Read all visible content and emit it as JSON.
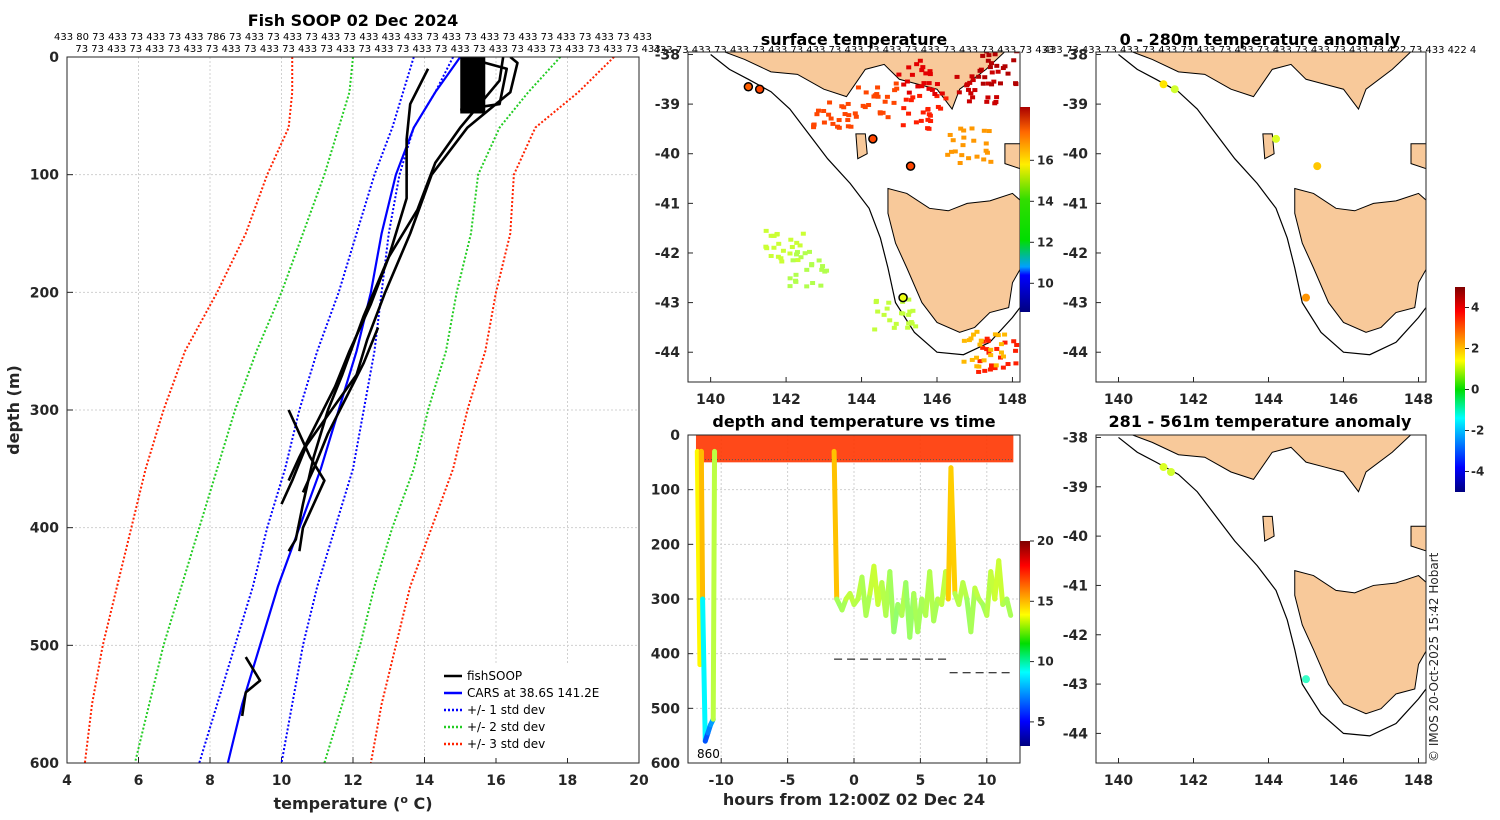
{
  "colors": {
    "fish": "#000000",
    "cars": "#0000ff",
    "std1": "#0000ff",
    "std2": "#22cc22",
    "std3": "#ff2200",
    "land": "#f8c99a",
    "coast": "#000000"
  },
  "chart_data": [
    {
      "id": "profile",
      "type": "line",
      "title": "Fish SOOP 02 Dec 2024",
      "xlabel": "temperature (",
      "xlabel_sup": "o",
      "xlabel_end": " C)",
      "ylabel": "depth (m)",
      "xlim": [
        4,
        20
      ],
      "ylim": [
        0,
        600
      ],
      "xticks": [
        "4",
        "6",
        "8",
        "10",
        "12",
        "14",
        "16",
        "18",
        "20"
      ],
      "yticks": [
        "0",
        "100",
        "200",
        "300",
        "400",
        "500",
        "600"
      ],
      "top_row1": "433 80 73 433 73 433 73 433 786 73 433 73 433 73 433 73 433 433 433 73 433 73 433 73 433 73 433 73 433 73 433",
      "top_row2": "73 73 433 73 433 73 433 73 433 73 433 73 433 73 433 73 433 73 433 73 433 73 433 73 433 73 433 73 433 73 433",
      "legend": [
        {
          "label": "fishSOOP",
          "style": "solid",
          "color": "#000000"
        },
        {
          "label": "CARS at 38.6S 141.2E",
          "style": "solid",
          "color": "#0000ff"
        },
        {
          "label": "+/- 1 std dev",
          "style": "dotted",
          "color": "#0000ff"
        },
        {
          "label": "+/- 2 std dev",
          "style": "dotted",
          "color": "#22cc22"
        },
        {
          "label": "+/- 3 std dev",
          "style": "dotted",
          "color": "#ff2200"
        }
      ],
      "series": [
        {
          "name": "CARS mean",
          "depth": [
            0,
            30,
            60,
            100,
            150,
            200,
            250,
            300,
            350,
            400,
            450,
            500,
            550,
            600
          ],
          "temp": [
            15.0,
            14.3,
            13.7,
            13.2,
            12.8,
            12.5,
            12.1,
            11.6,
            11.1,
            10.5,
            9.9,
            9.4,
            8.9,
            8.5
          ]
        },
        {
          "name": "-1 std",
          "depth": [
            0,
            30,
            60,
            100,
            150,
            200,
            250,
            300,
            350,
            400,
            450,
            500,
            550,
            600
          ],
          "temp": [
            13.7,
            13.4,
            13.1,
            12.6,
            12.1,
            11.6,
            11.0,
            10.5,
            10.1,
            9.6,
            9.2,
            8.7,
            8.2,
            7.7
          ]
        },
        {
          "name": "+1 std",
          "depth": [
            0,
            30,
            60,
            100,
            150,
            200,
            250,
            300,
            350,
            400,
            450,
            500,
            550,
            600
          ],
          "temp": [
            14.8,
            14.3,
            13.7,
            13.3,
            13.0,
            12.8,
            12.6,
            12.3,
            12.0,
            11.5,
            11.0,
            10.6,
            10.3,
            10.0
          ]
        },
        {
          "name": "-2 std",
          "depth": [
            0,
            30,
            60,
            100,
            150,
            200,
            250,
            300,
            350,
            400,
            450,
            500,
            550,
            600
          ],
          "temp": [
            12.0,
            11.9,
            11.6,
            11.2,
            10.6,
            10.0,
            9.3,
            8.7,
            8.2,
            7.7,
            7.2,
            6.7,
            6.3,
            5.9
          ]
        },
        {
          "name": "+2 std",
          "depth": [
            0,
            30,
            60,
            100,
            150,
            200,
            250,
            300,
            350,
            400,
            450,
            500,
            550,
            600
          ],
          "temp": [
            17.8,
            16.9,
            16.1,
            15.5,
            15.3,
            14.9,
            14.6,
            14.1,
            13.7,
            13.1,
            12.6,
            12.2,
            11.7,
            11.2
          ]
        },
        {
          "name": "-3 std",
          "depth": [
            0,
            30,
            60,
            100,
            150,
            200,
            250,
            300,
            350,
            400,
            450,
            500,
            550,
            600
          ],
          "temp": [
            10.3,
            10.3,
            10.2,
            9.6,
            9.0,
            8.2,
            7.3,
            6.7,
            6.2,
            5.8,
            5.4,
            5.0,
            4.7,
            4.5
          ]
        },
        {
          "name": "+3 std",
          "depth": [
            0,
            30,
            60,
            100,
            150,
            200,
            250,
            300,
            350,
            400,
            450,
            500,
            550,
            600
          ],
          "temp": [
            19.3,
            18.3,
            17.1,
            16.5,
            16.4,
            16.0,
            15.7,
            15.2,
            14.8,
            14.2,
            13.6,
            13.2,
            12.8,
            12.5
          ]
        }
      ],
      "fish_profiles": [
        {
          "depth": [
            0,
            10,
            40,
            45
          ],
          "temp": [
            15.1,
            16.3,
            16.1,
            15.0
          ]
        },
        {
          "depth": [
            0,
            5,
            30,
            60,
            100,
            150,
            200,
            240,
            270,
            300,
            330,
            360,
            380
          ],
          "temp": [
            16.4,
            16.6,
            16.4,
            15.2,
            14.2,
            13.6,
            12.9,
            12.4,
            12.1,
            11.4,
            10.7,
            10.3,
            10.0
          ]
        },
        {
          "depth": [
            0,
            20,
            60,
            90,
            130,
            170,
            210,
            250,
            280,
            310,
            340,
            360
          ],
          "temp": [
            16.2,
            16.1,
            15.0,
            14.3,
            13.8,
            13.0,
            12.5,
            11.9,
            11.5,
            11.0,
            10.5,
            10.2
          ]
        },
        {
          "depth": [
            10,
            40,
            70,
            120,
            170,
            220,
            270,
            300,
            340,
            380,
            410,
            420
          ],
          "temp": [
            14.1,
            13.6,
            13.5,
            13.5,
            13.0,
            12.3,
            11.7,
            11.3,
            10.9,
            10.6,
            10.4,
            10.2
          ]
        },
        {
          "depth": [
            230,
            260,
            290,
            320,
            350,
            370
          ],
          "temp": [
            12.7,
            12.3,
            11.8,
            11.3,
            10.9,
            10.6
          ]
        },
        {
          "depth": [
            300,
            320,
            340,
            360,
            380,
            400,
            420
          ],
          "temp": [
            10.2,
            10.5,
            10.8,
            11.2,
            10.9,
            10.6,
            10.5
          ]
        },
        {
          "depth": [
            510,
            520,
            530,
            540,
            560
          ],
          "temp": [
            9.0,
            9.2,
            9.4,
            9.0,
            8.9
          ]
        }
      ]
    },
    {
      "id": "timeseries",
      "type": "scatter",
      "title": "depth and temperature vs time",
      "xlabel": "hours from 12:00Z 02 Dec 24",
      "xlim": [
        -12.5,
        12.5
      ],
      "ylim": [
        0,
        600
      ],
      "xticks": [
        "-10",
        "-5",
        "0",
        "5",
        "10"
      ],
      "yticks": [
        "0",
        "100",
        "200",
        "300",
        "400",
        "500",
        "600"
      ],
      "annotation": "860",
      "colorbar_ticks": [
        "5",
        "10",
        "15",
        "20"
      ],
      "clim": [
        3,
        20
      ],
      "track": {
        "hours": [
          -11.8,
          -11.6,
          -11.5,
          -11.4,
          -11.2,
          -11.0,
          -10.8,
          -10.6,
          -10.5,
          -1.5,
          -1.3,
          -1.1,
          -0.9,
          -0.6,
          -0.3,
          0.0,
          0.3,
          0.6,
          0.9,
          1.2,
          1.5,
          1.8,
          2.1,
          2.4,
          2.7,
          3.0,
          3.3,
          3.6,
          3.9,
          4.2,
          4.5,
          4.8,
          5.1,
          5.4,
          5.7,
          6.0,
          6.3,
          6.6,
          6.9,
          7.1,
          7.3,
          7.6,
          7.9,
          8.2,
          8.5,
          8.8,
          9.1,
          9.4,
          9.7,
          10.0,
          10.3,
          10.6,
          10.9,
          11.2,
          11.5,
          11.8
        ],
        "depth": [
          30,
          420,
          30,
          300,
          560,
          545,
          530,
          520,
          30,
          30,
          300,
          310,
          320,
          300,
          290,
          310,
          300,
          260,
          330,
          290,
          240,
          310,
          270,
          330,
          250,
          360,
          310,
          330,
          270,
          370,
          290,
          360,
          300,
          330,
          250,
          340,
          300,
          310,
          250,
          300,
          60,
          290,
          310,
          270,
          300,
          360,
          280,
          300,
          310,
          330,
          250,
          300,
          230,
          310,
          300,
          330
        ],
        "temp": [
          17,
          10.5,
          17,
          12.5,
          6,
          7,
          7.5,
          8,
          17,
          17,
          12.3,
          12,
          12,
          12.4,
          12.8,
          12.3,
          12.5,
          12.5,
          12,
          12.5,
          12.9,
          12.6,
          12.8,
          12,
          12.6,
          11.6,
          12,
          12,
          12.6,
          11.3,
          12.6,
          11.8,
          12.4,
          12,
          12.7,
          12,
          12.4,
          12.4,
          12.8,
          12.5,
          16.5,
          12.4,
          12.3,
          12.6,
          12.3,
          11.7,
          12.7,
          12.4,
          12.2,
          12,
          12.9,
          12.4,
          13.2,
          12.3,
          12.4,
          12.0
        ]
      },
      "bottom_segments": [
        {
          "x0": -1.5,
          "x1": 7.0,
          "depth": 410
        },
        {
          "x0": 7.2,
          "x1": 12.0,
          "depth": 435
        }
      ]
    }
  ],
  "maps": {
    "xticks": [
      "140",
      "142",
      "144",
      "146",
      "148"
    ],
    "yticks": [
      "-38",
      "-39",
      "-40",
      "-41",
      "-42",
      "-43",
      "-44"
    ],
    "sst": {
      "title": "surface temperature",
      "top_row": "433 73 433 73 433 73 433 73 433 73 433 73 433 73 433 73 433 73 433 73 433",
      "colorbar_ticks": [
        "10",
        "12",
        "14",
        "16"
      ],
      "clim": [
        8.6,
        18.6
      ],
      "points": [
        {
          "lon": 141.0,
          "lat": -38.65,
          "v": 16.5
        },
        {
          "lon": 141.3,
          "lat": -38.7,
          "v": 16.8
        },
        {
          "lon": 144.3,
          "lat": -39.7,
          "v": 16.8
        },
        {
          "lon": 145.3,
          "lat": -40.25,
          "v": 16.8
        },
        {
          "lon": 145.1,
          "lat": -42.9,
          "v": 14.3
        }
      ],
      "patches": [
        {
          "lon": 142.6,
          "lat": -42.3,
          "v": 13.6
        },
        {
          "lon": 143.2,
          "lat": -39.2,
          "v": 16.8
        },
        {
          "lon": 144.3,
          "lat": -38.9,
          "v": 16.8
        },
        {
          "lon": 145.6,
          "lat": -39.1,
          "v": 17.3
        },
        {
          "lon": 147.0,
          "lat": -38.6,
          "v": 18.3
        },
        {
          "lon": 147.6,
          "lat": -38.2,
          "v": 18.6
        },
        {
          "lon": 145.5,
          "lat": -38.4,
          "v": 18.0
        },
        {
          "lon": 147.6,
          "lat": -44.0,
          "v": 17.3
        },
        {
          "lon": 146.8,
          "lat": -39.8,
          "v": 15.8
        },
        {
          "lon": 144.8,
          "lat": -43.2,
          "v": 13.8
        },
        {
          "lon": 141.9,
          "lat": -41.8,
          "v": 13.9
        },
        {
          "lon": 147.2,
          "lat": -43.9,
          "v": 15.4
        }
      ]
    },
    "anom1": {
      "title": "0 - 280m temperature anomaly",
      "top_row": "433 73 433 73 433 73 433 73 433 73 433 73 433 73 433 73 433 73 422 73 433 422 4",
      "points": [
        {
          "lon": 141.2,
          "lat": -38.6,
          "v": 1.5
        },
        {
          "lon": 141.5,
          "lat": -38.7,
          "v": 0.8
        },
        {
          "lon": 144.2,
          "lat": -39.7,
          "v": 0.9
        },
        {
          "lon": 145.3,
          "lat": -40.25,
          "v": 1.8
        },
        {
          "lon": 145.0,
          "lat": -42.9,
          "v": 2.3
        }
      ]
    },
    "anom2": {
      "title": "281 - 561m temperature anomaly",
      "points": [
        {
          "lon": 141.2,
          "lat": -38.6,
          "v": 0.9
        },
        {
          "lon": 141.4,
          "lat": -38.7,
          "v": 0.8
        },
        {
          "lon": 145.0,
          "lat": -42.9,
          "v": -0.7
        }
      ]
    },
    "anom_colorbar_ticks": [
      "4",
      "2",
      "0",
      "-2",
      "-4"
    ]
  },
  "credit": "© IMOS 20-Oct-2025 15:42 Hobart"
}
